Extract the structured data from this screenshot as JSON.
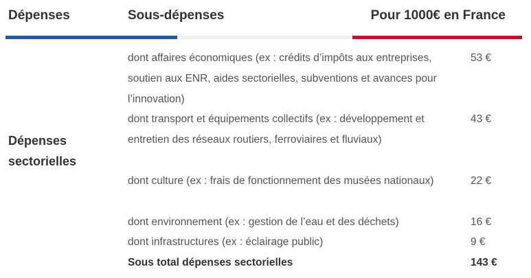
{
  "header": {
    "col1": "Dépenses",
    "col2": "Sous-dépenses",
    "col3": "Pour 1000€ en France"
  },
  "stripe_colors": {
    "blue": "#1f5aa8",
    "white": "#f0f0f0",
    "red": "#c8102e"
  },
  "category": "Dépenses sectorielles",
  "rows": [
    {
      "desc": "dont affaires économiques (ex : crédits d’impôts aux entreprises, soutien aux ENR, aides sectorielles, subventions et avances pour l’innovation)",
      "amount": "53 €"
    },
    {
      "desc": "dont transport et équipements collectifs (ex : développement et entretien des réseaux routiers, ferroviaires et fluviaux)",
      "amount": "43 €"
    },
    {
      "desc": "dont culture (ex : frais de fonctionnement des musées nationaux)",
      "amount": "22 €"
    },
    {
      "desc": "dont environnement (ex : gestion de l’eau et des déchets)",
      "amount": "16 €"
    },
    {
      "desc": "dont infrastructures (ex : éclairage public)",
      "amount": "9 €"
    }
  ],
  "total": {
    "desc": "Sous total dépenses sectorielles",
    "amount": "143 €"
  }
}
